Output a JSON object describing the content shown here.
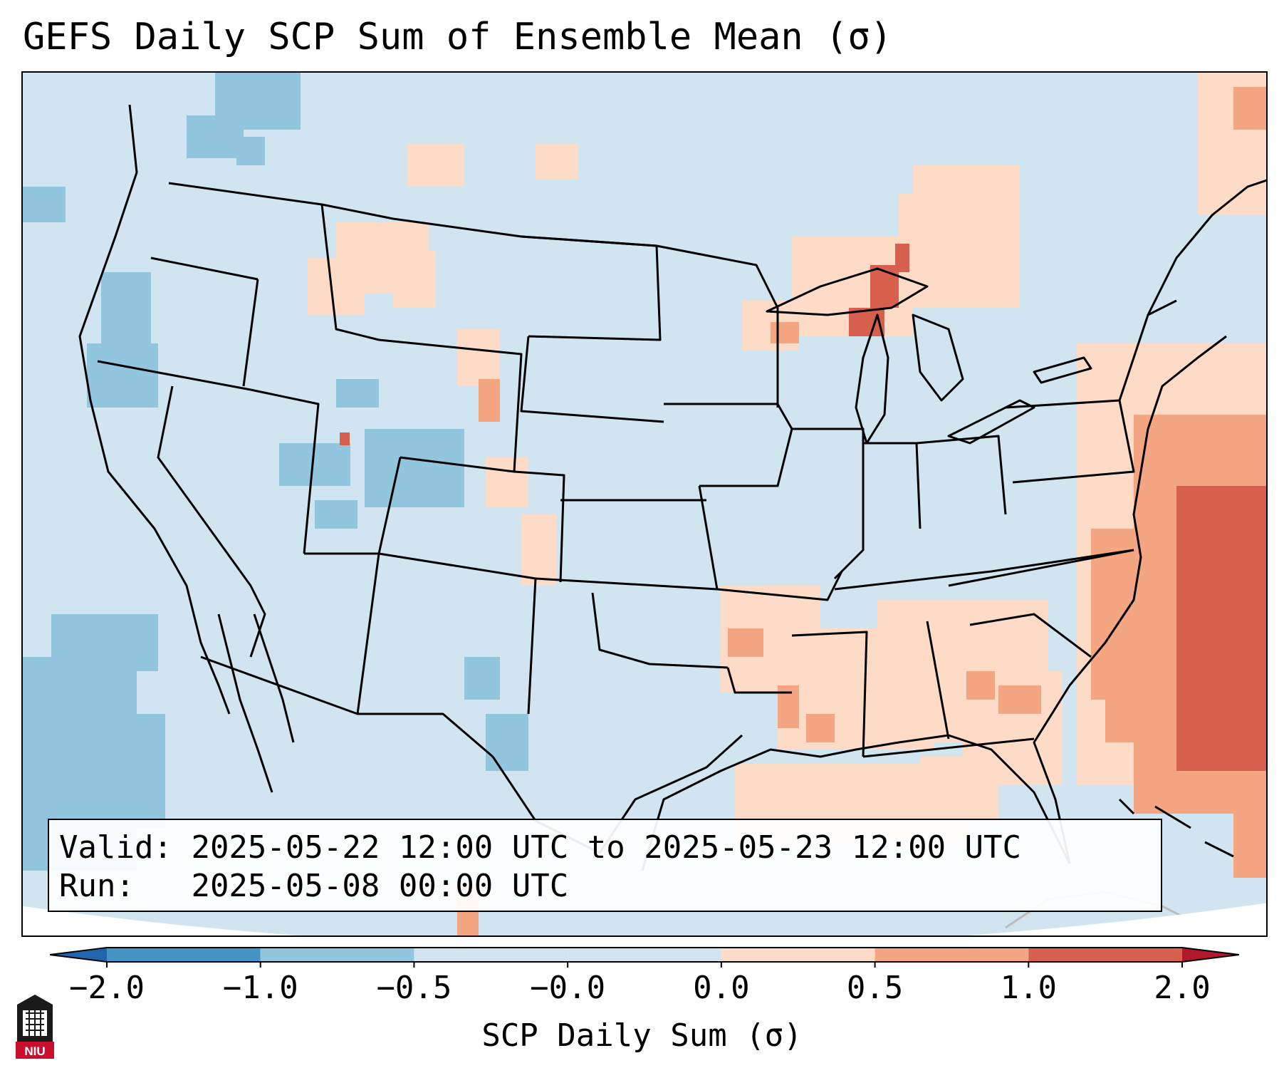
{
  "title": "GEFS Daily SCP Sum of Ensemble Mean (σ)",
  "info": {
    "valid_label": "Valid:",
    "valid_value": "2025-05-22 12:00 UTC to 2025-05-23 12:00 UTC",
    "run_label": "Run:",
    "run_value": "2025-05-08 00:00 UTC"
  },
  "colorbar": {
    "label": "SCP Daily Sum (σ)",
    "ticks": [
      "−2.0",
      "−1.0",
      "−0.5",
      "−0.0",
      "0.0",
      "0.5",
      "1.0",
      "2.0"
    ],
    "colors": [
      "#4393c3",
      "#92c5de",
      "#d1e5f0",
      "#fddbc7",
      "#f4a582",
      "#d6604d"
    ],
    "extend_low_color": "#2166ac",
    "extend_high_color": "#b2182b",
    "background_color": "#d1e5f0"
  },
  "logo": {
    "text": "NIU",
    "color": "#c8102e"
  }
}
